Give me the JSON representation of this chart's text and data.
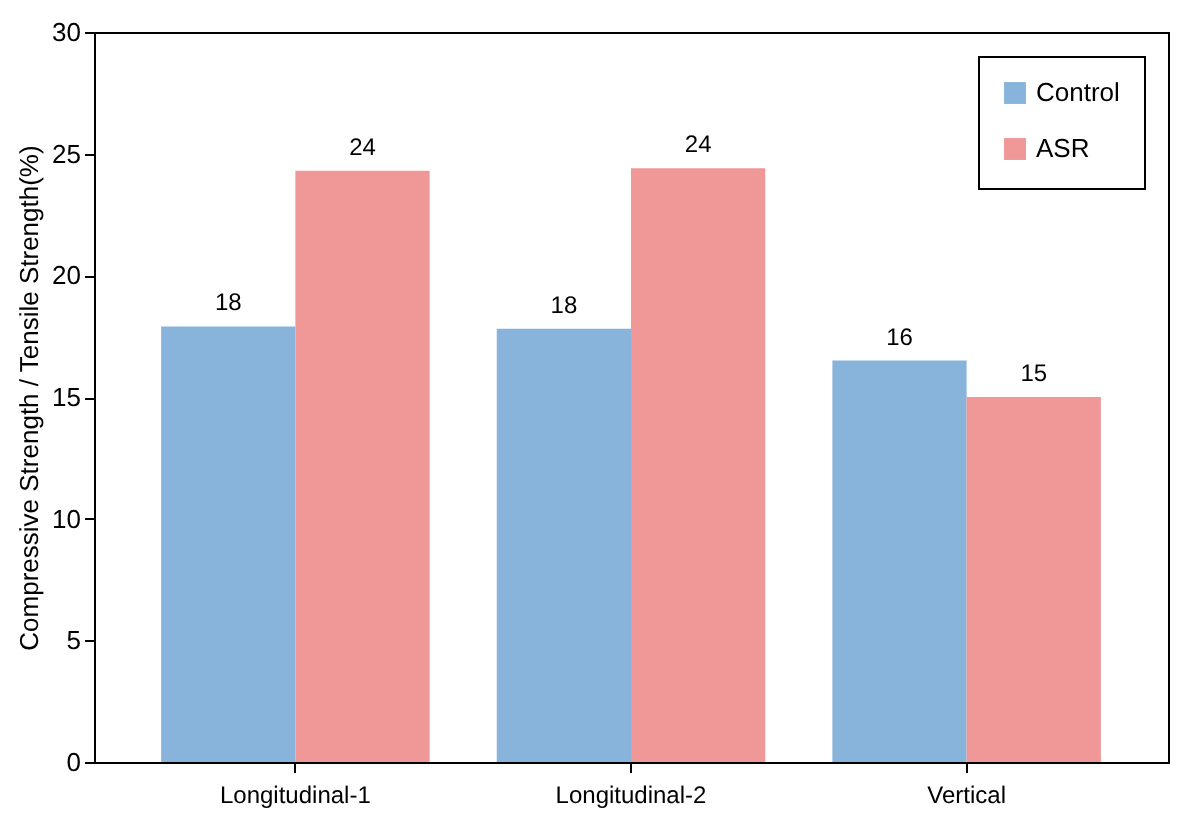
{
  "chart_data": {
    "type": "bar",
    "ylabel": "Compressive Strength / Tensile Strength(%)",
    "categories": [
      "Longitudinal-1",
      "Longitudinal-2",
      "Vertical"
    ],
    "series": [
      {
        "name": "Control",
        "color": "#88b4dc",
        "values": [
          17.9,
          17.8,
          16.5
        ],
        "value_labels": [
          "18",
          "18",
          "16"
        ]
      },
      {
        "name": "ASR",
        "color": "#f09797",
        "values": [
          24.3,
          24.4,
          15.0
        ],
        "value_labels": [
          "24",
          "24",
          "15"
        ]
      }
    ],
    "ylim": [
      0,
      30
    ],
    "yticks": [
      0,
      5,
      10,
      15,
      20,
      25,
      30
    ],
    "grid": false,
    "legend": "top right"
  }
}
